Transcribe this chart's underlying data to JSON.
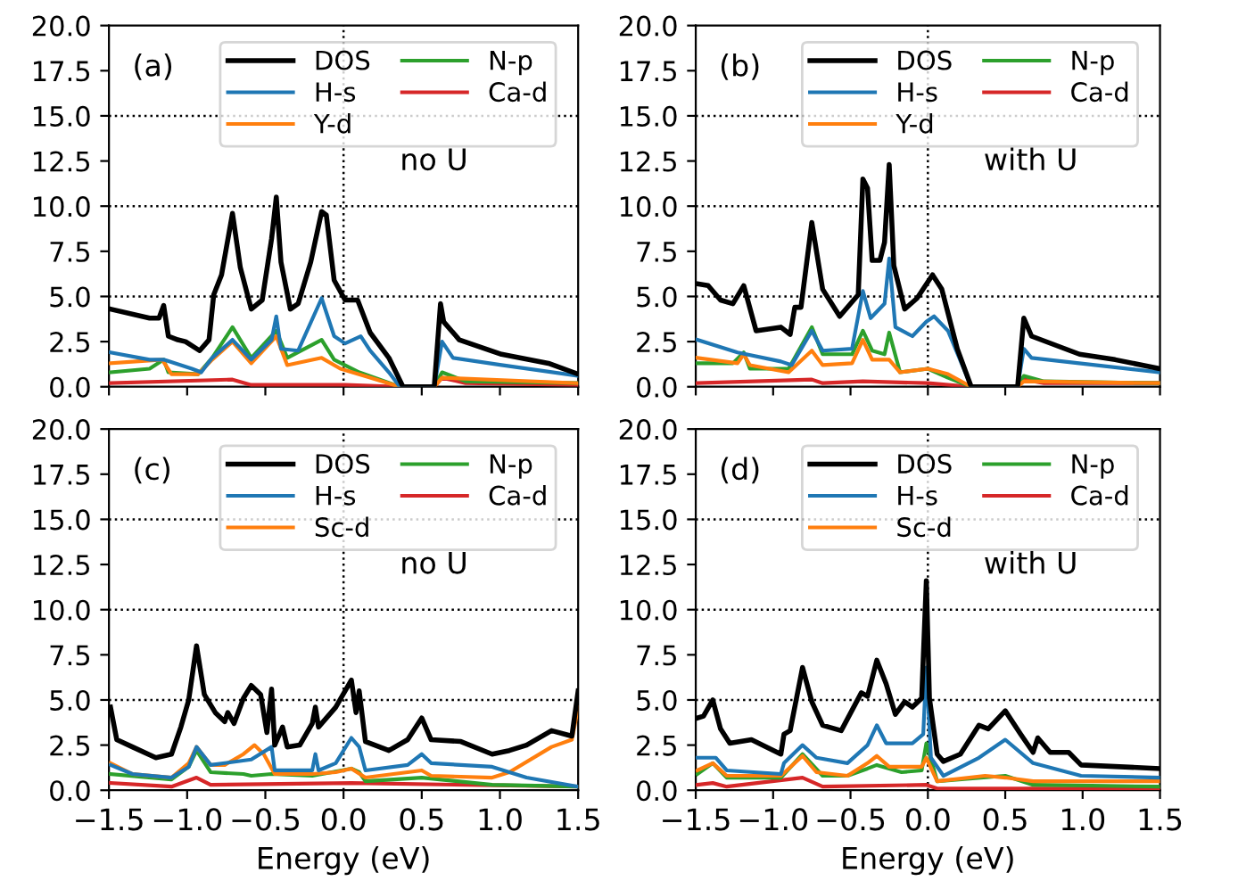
{
  "chart_data": [
    {
      "type": "line",
      "annotations": [
        "(a)",
        "no U"
      ],
      "xlim": [
        -1.5,
        1.5
      ],
      "ylim": [
        0,
        20
      ],
      "xticks": [
        -1.5,
        -1.0,
        -0.5,
        0.0,
        0.5,
        1.0,
        1.5
      ],
      "yticks": [
        {
          "value": 0,
          "label": "0.0"
        },
        {
          "value": 2.5,
          "label": "2.5"
        },
        {
          "value": 5,
          "label": "5.0"
        },
        {
          "value": 7.5,
          "label": "7.5"
        },
        {
          "value": 10,
          "label": "10.0"
        },
        {
          "value": 12.5,
          "label": "12.5"
        },
        {
          "value": 15,
          "label": "15.0"
        },
        {
          "value": 17.5,
          "label": "17.5"
        },
        {
          "value": 20,
          "label": "20.0"
        }
      ],
      "tick_labels": "y",
      "legend": "top right",
      "line_style": "solid",
      "marker": "none",
      "ref_lines": [
        {
          "axis": "y",
          "value": 5,
          "color": "#000000",
          "line_style": "dotted"
        },
        {
          "axis": "y",
          "value": 10,
          "color": "#000000",
          "line_style": "dotted"
        },
        {
          "axis": "y",
          "value": 15,
          "color": "#000000",
          "line_style": "dotted"
        },
        {
          "axis": "x",
          "value": 0,
          "color": "#000000",
          "line_style": "dotted"
        }
      ],
      "series": [
        {
          "name": "DOS",
          "color": "#000000",
          "x": [
            -1.49,
            -1.24,
            -1.18,
            -1.15,
            -1.12,
            -1.06,
            -1.01,
            -0.92,
            -0.86,
            -0.83,
            -0.78,
            -0.71,
            -0.66,
            -0.59,
            -0.52,
            -0.46,
            -0.43,
            -0.4,
            -0.34,
            -0.29,
            -0.21,
            -0.14,
            -0.11,
            -0.06,
            0.01,
            0.09,
            0.17,
            0.29,
            0.38,
            0.58,
            0.62,
            0.64,
            0.74,
            1.01,
            1.31,
            1.5
          ],
          "values": [
            4.3,
            3.8,
            3.8,
            4.5,
            2.8,
            2.6,
            2.5,
            2.0,
            2.6,
            5.1,
            6.2,
            9.6,
            6.6,
            4.3,
            4.8,
            8.2,
            10.5,
            6.9,
            4.3,
            4.6,
            6.9,
            9.7,
            9.5,
            5.9,
            4.8,
            4.8,
            3.0,
            1.6,
            0,
            0,
            4.6,
            3.6,
            2.6,
            1.8,
            1.3,
            0.7
          ]
        },
        {
          "name": "H-s",
          "color": "#1f77b4",
          "x": [
            -1.49,
            -1.24,
            -1.15,
            -0.97,
            -0.91,
            -0.84,
            -0.71,
            -0.59,
            -0.46,
            -0.43,
            -0.4,
            -0.29,
            -0.14,
            -0.06,
            0.01,
            0.11,
            0.17,
            0.29,
            0.36,
            0.58,
            0.63,
            0.7,
            1.01,
            1.5
          ],
          "values": [
            1.9,
            1.5,
            1.5,
            1.0,
            0.8,
            1.6,
            2.6,
            1.5,
            2.6,
            3.9,
            2.1,
            2.0,
            4.9,
            2.8,
            2.4,
            2.8,
            2.0,
            0.8,
            0,
            0,
            2.5,
            1.6,
            1.2,
            0.6
          ]
        },
        {
          "name": "Y-d",
          "color": "#ff7f0e",
          "x": [
            -1.49,
            -1.16,
            -1.1,
            -0.93,
            -0.84,
            -0.71,
            -0.59,
            -0.43,
            -0.36,
            -0.14,
            -0.02,
            0.17,
            0.36,
            0.58,
            0.63,
            1.5
          ],
          "values": [
            1.3,
            1.5,
            0.7,
            0.7,
            1.5,
            2.5,
            1.3,
            2.8,
            1.2,
            1.6,
            1.0,
            0.5,
            0,
            0,
            0.5,
            0.2
          ]
        },
        {
          "name": "N-p",
          "color": "#2ca02c",
          "x": [
            -1.49,
            -1.24,
            -1.15,
            -1.12,
            -0.93,
            -0.84,
            -0.71,
            -0.59,
            -0.43,
            -0.36,
            -0.14,
            -0.06,
            0.1,
            0.36,
            0.58,
            0.63,
            0.78,
            1.5
          ],
          "values": [
            0.8,
            1.0,
            1.5,
            0.8,
            0.7,
            1.6,
            3.3,
            1.6,
            3.1,
            1.6,
            2.6,
            1.5,
            0.8,
            0,
            0,
            0.8,
            0.3,
            0.2
          ]
        },
        {
          "name": "Ca-d",
          "color": "#d62728",
          "x": [
            -1.49,
            -0.71,
            -0.59,
            0.01,
            0.36,
            0.58,
            0.63,
            0.78,
            1.5
          ],
          "values": [
            0.2,
            0.4,
            0.1,
            0.1,
            0,
            0,
            0.5,
            0.2,
            0.1
          ]
        }
      ]
    },
    {
      "type": "line",
      "annotations": [
        "(b)",
        "with U"
      ],
      "xlim": [
        -1.5,
        1.5
      ],
      "ylim": [
        0,
        20
      ],
      "xticks": [
        -1.5,
        -1.0,
        -0.5,
        0.0,
        0.5,
        1.0,
        1.5
      ],
      "yticks": [
        {
          "value": 0,
          "label": "0.0"
        },
        {
          "value": 2.5,
          "label": "2.5"
        },
        {
          "value": 5,
          "label": "5.0"
        },
        {
          "value": 7.5,
          "label": "7.5"
        },
        {
          "value": 10,
          "label": "10.0"
        },
        {
          "value": 12.5,
          "label": "12.5"
        },
        {
          "value": 15,
          "label": "15.0"
        },
        {
          "value": 17.5,
          "label": "17.5"
        },
        {
          "value": 20,
          "label": "20.0"
        }
      ],
      "tick_labels": "y",
      "legend": "top right",
      "line_style": "solid",
      "marker": "none",
      "ref_lines": [
        {
          "axis": "y",
          "value": 5,
          "color": "#000000",
          "line_style": "dotted"
        },
        {
          "axis": "y",
          "value": 10,
          "color": "#000000",
          "line_style": "dotted"
        },
        {
          "axis": "y",
          "value": 15,
          "color": "#000000",
          "line_style": "dotted"
        },
        {
          "axis": "x",
          "value": 0,
          "color": "#000000",
          "line_style": "dotted"
        }
      ],
      "series": [
        {
          "name": "DOS",
          "color": "#000000",
          "x": [
            -1.49,
            -1.42,
            -1.34,
            -1.26,
            -1.19,
            -1.11,
            -0.95,
            -0.89,
            -0.86,
            -0.82,
            -0.75,
            -0.68,
            -0.57,
            -0.45,
            -0.42,
            -0.39,
            -0.36,
            -0.31,
            -0.28,
            -0.25,
            -0.22,
            -0.15,
            -0.07,
            0.03,
            0.09,
            0.19,
            0.28,
            0.58,
            0.62,
            0.67,
            0.98,
            1.21,
            1.5
          ],
          "values": [
            5.7,
            5.6,
            4.8,
            4.6,
            5.6,
            3.1,
            3.3,
            2.9,
            4.4,
            4.4,
            9.1,
            5.4,
            3.9,
            5.1,
            11.5,
            11.0,
            7.0,
            7.0,
            8.0,
            12.3,
            6.7,
            4.3,
            4.9,
            6.2,
            5.4,
            2.1,
            0,
            0,
            3.8,
            2.8,
            1.8,
            1.5,
            1.0
          ]
        },
        {
          "name": "H-s",
          "color": "#1f77b4",
          "x": [
            -1.49,
            -1.23,
            -0.95,
            -0.88,
            -0.75,
            -0.68,
            -0.49,
            -0.42,
            -0.37,
            -0.28,
            -0.25,
            -0.21,
            -0.1,
            -0.01,
            0.04,
            0.13,
            0.28,
            0.58,
            0.62,
            0.67,
            1.5
          ],
          "values": [
            2.6,
            1.9,
            1.4,
            1.2,
            3.1,
            2.0,
            2.1,
            5.3,
            3.8,
            4.6,
            7.1,
            3.3,
            2.8,
            3.6,
            3.9,
            3.1,
            0,
            0,
            2.1,
            1.6,
            0.8
          ]
        },
        {
          "name": "Y-d",
          "color": "#ff7f0e",
          "x": [
            -1.49,
            -1.23,
            -1.19,
            -1.15,
            -0.9,
            -0.75,
            -0.68,
            -0.49,
            -0.42,
            -0.36,
            -0.25,
            -0.18,
            0.0,
            0.13,
            0.28,
            0.58,
            0.62,
            1.5
          ],
          "values": [
            1.6,
            1.3,
            1.8,
            1.2,
            0.8,
            2.0,
            1.2,
            1.3,
            2.6,
            1.5,
            1.5,
            0.8,
            1.0,
            0.7,
            0,
            0,
            0.3,
            0.2
          ]
        },
        {
          "name": "N-p",
          "color": "#2ca02c",
          "x": [
            -1.49,
            -1.26,
            -1.19,
            -1.15,
            -0.9,
            -0.75,
            -0.68,
            -0.49,
            -0.42,
            -0.36,
            -0.28,
            -0.25,
            -0.18,
            0.0,
            0.13,
            0.28,
            0.58,
            0.62,
            0.75,
            1.5
          ],
          "values": [
            1.3,
            1.3,
            1.9,
            1.0,
            1.0,
            3.3,
            1.8,
            1.8,
            3.1,
            2.0,
            1.8,
            3.0,
            0.8,
            1.0,
            0.5,
            0,
            0,
            0.6,
            0.3,
            0.2
          ]
        },
        {
          "name": "Ca-d",
          "color": "#d62728",
          "x": [
            -1.49,
            -0.75,
            -0.68,
            -0.42,
            0.0,
            0.28,
            0.58,
            0.62,
            0.75,
            1.5
          ],
          "values": [
            0.2,
            0.4,
            0.2,
            0.3,
            0.2,
            0,
            0,
            0.4,
            0.2,
            0.2
          ]
        }
      ]
    },
    {
      "type": "line",
      "annotations": [
        "(c)",
        "no U"
      ],
      "xlabel": "Energy (eV)",
      "xlim": [
        -1.5,
        1.5
      ],
      "ylim": [
        0,
        20
      ],
      "xticks": [
        {
          "value": -1.5,
          "label": "−1.5"
        },
        {
          "value": -1.0,
          "label": "−1.0"
        },
        {
          "value": -0.5,
          "label": "−0.5"
        },
        {
          "value": 0.0,
          "label": "0.0"
        },
        {
          "value": 0.5,
          "label": "0.5"
        },
        {
          "value": 1.0,
          "label": "1.0"
        },
        {
          "value": 1.5,
          "label": "1.5"
        }
      ],
      "yticks": [
        {
          "value": 0,
          "label": "0.0"
        },
        {
          "value": 2.5,
          "label": "2.5"
        },
        {
          "value": 5,
          "label": "5.0"
        },
        {
          "value": 7.5,
          "label": "7.5"
        },
        {
          "value": 10,
          "label": "10.0"
        },
        {
          "value": 12.5,
          "label": "12.5"
        },
        {
          "value": 15,
          "label": "15.0"
        },
        {
          "value": 17.5,
          "label": "17.5"
        },
        {
          "value": 20,
          "label": "20.0"
        }
      ],
      "legend": "top right",
      "line_style": "solid",
      "marker": "none",
      "ref_lines": [
        {
          "axis": "y",
          "value": 5,
          "color": "#000000",
          "line_style": "dotted"
        },
        {
          "axis": "y",
          "value": 10,
          "color": "#000000",
          "line_style": "dotted"
        },
        {
          "axis": "y",
          "value": 15,
          "color": "#000000",
          "line_style": "dotted"
        },
        {
          "axis": "x",
          "value": 0,
          "color": "#000000",
          "line_style": "dotted"
        }
      ],
      "series": [
        {
          "name": "DOS",
          "color": "#000000",
          "x": [
            -1.49,
            -1.45,
            -1.35,
            -1.2,
            -1.1,
            -1.04,
            -0.99,
            -0.94,
            -0.89,
            -0.82,
            -0.76,
            -0.74,
            -0.7,
            -0.64,
            -0.59,
            -0.53,
            -0.49,
            -0.46,
            -0.44,
            -0.39,
            -0.36,
            -0.28,
            -0.2,
            -0.18,
            -0.16,
            -0.05,
            0.05,
            0.08,
            0.1,
            0.14,
            0.29,
            0.41,
            0.5,
            0.56,
            0.75,
            0.95,
            1.06,
            1.17,
            1.33,
            1.46,
            1.5
          ],
          "values": [
            4.6,
            2.8,
            2.4,
            1.8,
            2.0,
            3.5,
            5.0,
            8.0,
            5.3,
            4.3,
            3.8,
            4.3,
            3.7,
            5.1,
            5.8,
            5.3,
            3.2,
            5.6,
            2.5,
            3.5,
            2.4,
            2.5,
            3.7,
            4.6,
            3.5,
            4.6,
            6.1,
            4.3,
            5.5,
            2.7,
            2.2,
            2.8,
            4.0,
            2.8,
            2.7,
            2.0,
            2.2,
            2.5,
            3.3,
            3.0,
            5.5
          ]
        },
        {
          "name": "H-s",
          "color": "#1f77b4",
          "x": [
            -1.49,
            -1.35,
            -1.1,
            -0.99,
            -0.94,
            -0.85,
            -0.59,
            -0.46,
            -0.44,
            -0.2,
            -0.18,
            -0.16,
            -0.05,
            0.05,
            0.1,
            0.14,
            0.41,
            0.5,
            0.56,
            0.95,
            1.17,
            1.5
          ],
          "values": [
            1.4,
            0.9,
            0.7,
            1.3,
            2.4,
            1.4,
            1.7,
            2.4,
            1.1,
            1.1,
            2.0,
            1.1,
            1.5,
            2.9,
            2.4,
            1.1,
            1.4,
            2.0,
            1.5,
            1.3,
            0.7,
            0.2
          ]
        },
        {
          "name": "Sc-d",
          "color": "#ff7f0e",
          "x": [
            -1.49,
            -1.35,
            -1.1,
            -0.99,
            -0.94,
            -0.85,
            -0.76,
            -0.64,
            -0.57,
            -0.51,
            -0.44,
            -0.2,
            -0.05,
            0.05,
            0.14,
            0.5,
            0.56,
            0.95,
            1.06,
            1.33,
            1.46,
            1.5
          ],
          "values": [
            1.5,
            0.9,
            0.7,
            1.5,
            2.4,
            1.4,
            1.4,
            2.0,
            2.5,
            2.0,
            0.9,
            0.9,
            1.0,
            1.2,
            0.7,
            1.1,
            0.8,
            0.7,
            1.0,
            2.4,
            2.8,
            4.6
          ]
        },
        {
          "name": "N-p",
          "color": "#2ca02c",
          "x": [
            -1.49,
            -1.1,
            -0.99,
            -0.94,
            -0.85,
            -0.64,
            -0.59,
            -0.46,
            -0.2,
            0.05,
            0.1,
            0.14,
            0.5,
            0.95,
            1.5
          ],
          "values": [
            0.9,
            0.6,
            1.3,
            2.2,
            1.0,
            0.9,
            0.8,
            0.9,
            0.8,
            1.2,
            1.0,
            0.5,
            0.7,
            0.3,
            0.2
          ]
        },
        {
          "name": "Ca-d",
          "color": "#d62728",
          "x": [
            -1.49,
            -1.1,
            -0.94,
            -0.85,
            0.05,
            1.5
          ],
          "values": [
            0.4,
            0.2,
            0.7,
            0.3,
            0.4,
            0.2
          ]
        }
      ]
    },
    {
      "type": "line",
      "annotations": [
        "(d)",
        "with U"
      ],
      "xlabel": "Energy (eV)",
      "xlim": [
        -1.5,
        1.5
      ],
      "ylim": [
        0,
        20
      ],
      "xticks": [
        {
          "value": -1.5,
          "label": "−1.5"
        },
        {
          "value": -1.0,
          "label": "−1.0"
        },
        {
          "value": -0.5,
          "label": "−0.5"
        },
        {
          "value": 0.0,
          "label": "0.0"
        },
        {
          "value": 0.5,
          "label": "0.5"
        },
        {
          "value": 1.0,
          "label": "1.0"
        },
        {
          "value": 1.5,
          "label": "1.5"
        }
      ],
      "yticks": [
        {
          "value": 0,
          "label": "0.0"
        },
        {
          "value": 2.5,
          "label": "2.5"
        },
        {
          "value": 5,
          "label": "5.0"
        },
        {
          "value": 7.5,
          "label": "7.5"
        },
        {
          "value": 10,
          "label": "10.0"
        },
        {
          "value": 12.5,
          "label": "12.5"
        },
        {
          "value": 15,
          "label": "15.0"
        },
        {
          "value": 17.5,
          "label": "17.5"
        },
        {
          "value": 20,
          "label": "20.0"
        }
      ],
      "legend": "top right",
      "line_style": "solid",
      "marker": "none",
      "ref_lines": [
        {
          "axis": "y",
          "value": 5,
          "color": "#000000",
          "line_style": "dotted"
        },
        {
          "axis": "y",
          "value": 10,
          "color": "#000000",
          "line_style": "dotted"
        },
        {
          "axis": "y",
          "value": 15,
          "color": "#000000",
          "line_style": "dotted"
        },
        {
          "axis": "x",
          "value": 0,
          "color": "#000000",
          "line_style": "dotted"
        }
      ],
      "series": [
        {
          "name": "DOS",
          "color": "#000000",
          "x": [
            -1.49,
            -1.45,
            -1.39,
            -1.34,
            -1.28,
            -1.14,
            -0.95,
            -0.93,
            -0.89,
            -0.81,
            -0.75,
            -0.68,
            -0.56,
            -0.43,
            -0.39,
            -0.33,
            -0.27,
            -0.21,
            -0.15,
            -0.1,
            -0.04,
            -0.01,
            0.01,
            0.06,
            0.1,
            0.21,
            0.33,
            0.39,
            0.5,
            0.6,
            0.68,
            0.71,
            0.79,
            0.91,
            0.99,
            1.5
          ],
          "values": [
            4.0,
            4.1,
            5.0,
            3.4,
            2.6,
            2.8,
            2.0,
            3.1,
            3.3,
            6.8,
            4.9,
            3.6,
            3.3,
            5.4,
            5.2,
            7.2,
            5.9,
            4.2,
            4.9,
            4.6,
            5.1,
            11.6,
            5.1,
            2.0,
            1.6,
            2.0,
            3.6,
            3.4,
            4.4,
            3.1,
            2.1,
            2.9,
            2.1,
            2.1,
            1.4,
            1.2
          ]
        },
        {
          "name": "H-s",
          "color": "#1f77b4",
          "x": [
            -1.49,
            -1.37,
            -1.3,
            -0.95,
            -0.93,
            -0.81,
            -0.72,
            -0.52,
            -0.39,
            -0.33,
            -0.27,
            -0.1,
            -0.03,
            -0.01,
            0.02,
            0.1,
            0.33,
            0.5,
            0.68,
            0.99,
            1.5
          ],
          "values": [
            1.8,
            1.8,
            1.1,
            0.9,
            1.5,
            2.5,
            1.8,
            1.5,
            2.5,
            3.6,
            2.6,
            2.6,
            3.1,
            6.8,
            1.8,
            0.8,
            1.8,
            2.8,
            1.5,
            0.8,
            0.7
          ]
        },
        {
          "name": "Sc-d",
          "color": "#ff7f0e",
          "x": [
            -1.49,
            -1.39,
            -1.3,
            -0.95,
            -0.81,
            -0.72,
            -0.52,
            -0.39,
            -0.33,
            -0.25,
            -0.04,
            -0.01,
            0.06,
            0.37,
            0.5,
            0.68,
            1.5
          ],
          "values": [
            1.1,
            1.5,
            0.8,
            0.8,
            1.9,
            1.0,
            0.8,
            1.5,
            1.9,
            1.3,
            1.3,
            1.8,
            0.5,
            0.8,
            0.7,
            0.5,
            0.5
          ]
        },
        {
          "name": "N-p",
          "color": "#2ca02c",
          "x": [
            -1.49,
            -1.39,
            -1.3,
            -0.95,
            -0.81,
            -0.68,
            -0.52,
            -0.39,
            -0.33,
            -0.17,
            -0.04,
            -0.01,
            0.06,
            0.5,
            0.68,
            1.5
          ],
          "values": [
            0.9,
            1.5,
            0.7,
            0.7,
            2.0,
            0.8,
            0.8,
            1.2,
            1.4,
            1.0,
            1.1,
            2.6,
            0.5,
            0.8,
            0.3,
            0.2
          ]
        },
        {
          "name": "Ca-d",
          "color": "#d62728",
          "x": [
            -1.49,
            -1.39,
            -1.3,
            -0.81,
            -0.68,
            -0.01,
            0.06,
            1.5
          ],
          "values": [
            0.3,
            0.4,
            0.2,
            0.7,
            0.2,
            0.3,
            0.1,
            0.1
          ]
        }
      ]
    }
  ]
}
